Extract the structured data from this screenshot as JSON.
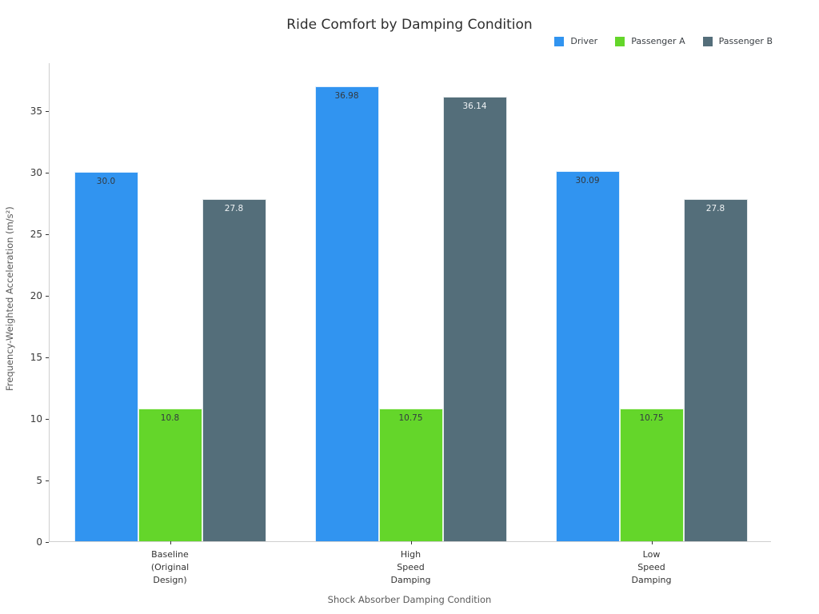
{
  "chart_data": {
    "type": "bar",
    "title": "Ride Comfort by Damping Condition",
    "xlabel": "Shock Absorber Damping Condition",
    "ylabel": "Frequency-Weighted Acceleration (m/s²)",
    "categories": [
      [
        "Baseline",
        "(Original",
        "Design)"
      ],
      [
        "High",
        "Speed",
        "Damping"
      ],
      [
        "Low",
        "Speed",
        "Damping"
      ]
    ],
    "series": [
      {
        "name": "Driver",
        "color": "#3194f0",
        "values": [
          30.0,
          36.98,
          30.09
        ],
        "value_labels": [
          "30.0",
          "36.98",
          "30.09"
        ],
        "value_label_color": "#333a40"
      },
      {
        "name": "Passenger A",
        "color": "#64d62a",
        "values": [
          10.8,
          10.75,
          10.75
        ],
        "value_labels": [
          "10.8",
          "10.75",
          "10.75"
        ],
        "value_label_color": "#333a40"
      },
      {
        "name": "Passenger B",
        "color": "#546e7a",
        "values": [
          27.8,
          36.14,
          27.8
        ],
        "value_labels": [
          "27.8",
          "36.14",
          "27.8"
        ],
        "value_label_color": "#eef2f4"
      }
    ],
    "yticks": [
      0,
      5,
      10,
      15,
      20,
      25,
      30,
      35
    ],
    "ylim": [
      0,
      38.9
    ],
    "grid": false,
    "legend_position": "top-right",
    "background_color": "#ffffff",
    "spine_color": "#cfcfcf"
  }
}
